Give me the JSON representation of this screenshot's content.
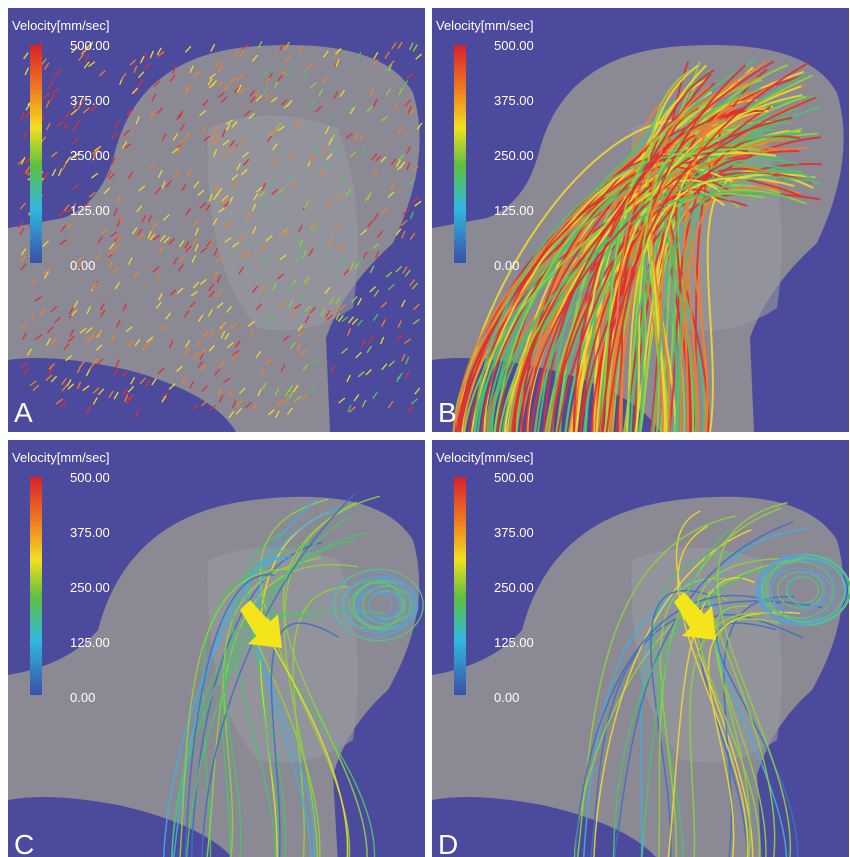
{
  "panels": [
    {
      "label": "A",
      "colorbar": {
        "title": "Velocity[mm/sec]",
        "ticks": [
          "500.00",
          "375.00",
          "250.00",
          "125.00",
          "0.00"
        ]
      }
    },
    {
      "label": "B",
      "colorbar": {
        "title": "Velocity[mm/sec]",
        "ticks": [
          "500.00",
          "375.00",
          "250.00",
          "125.00",
          "0.00"
        ]
      }
    },
    {
      "label": "C",
      "colorbar": {
        "title": "Velocity[mm/sec]",
        "ticks": [
          "500.00",
          "375.00",
          "250.00",
          "125.00",
          "0.00"
        ]
      }
    },
    {
      "label": "D",
      "colorbar": {
        "title": "Velocity[mm/sec]",
        "ticks": [
          "500.00",
          "375.00",
          "250.00",
          "125.00",
          "0.00"
        ]
      }
    }
  ]
}
